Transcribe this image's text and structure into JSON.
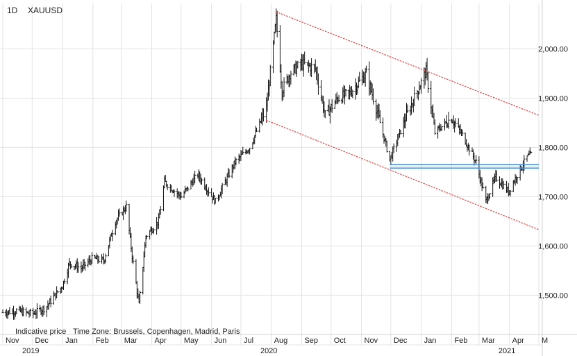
{
  "header": {
    "interval": "1D",
    "symbol": "XAUUSD"
  },
  "footer": {
    "note": "Indicative price",
    "timezone": "Time Zone: Brussels, Copenhagen, Madrid, Paris"
  },
  "colors": {
    "bars": "#111111",
    "grid": "#e3e3e3",
    "channel": "#e05050",
    "support": "#4a90d9",
    "text": "#222222"
  },
  "chart_data": {
    "type": "ohlc",
    "ylim": [
      1440,
      2085
    ],
    "y_ticks": [
      1500,
      1600,
      1700,
      1800,
      1900,
      2000
    ],
    "y_tick_labels": [
      "1,500.00",
      "1,600.00",
      "1,700.00",
      "1,800.00",
      "1,900.00",
      "2,000.00"
    ],
    "x_range": [
      "2019-11-01",
      "2021-05-01"
    ],
    "month_ticks": [
      {
        "date": "2019-11-01",
        "label": "Nov"
      },
      {
        "date": "2019-12-01",
        "label": "Dec"
      },
      {
        "date": "2020-01-01",
        "label": "Jan"
      },
      {
        "date": "2020-02-01",
        "label": "Feb"
      },
      {
        "date": "2020-03-01",
        "label": "Mar"
      },
      {
        "date": "2020-04-01",
        "label": "Apr"
      },
      {
        "date": "2020-05-01",
        "label": "May"
      },
      {
        "date": "2020-06-01",
        "label": "Jun"
      },
      {
        "date": "2020-07-01",
        "label": "Jul"
      },
      {
        "date": "2020-08-01",
        "label": "Aug"
      },
      {
        "date": "2020-09-01",
        "label": "Sep"
      },
      {
        "date": "2020-10-01",
        "label": "Oct"
      },
      {
        "date": "2020-11-01",
        "label": "Nov"
      },
      {
        "date": "2020-12-01",
        "label": "Dec"
      },
      {
        "date": "2021-01-01",
        "label": "Jan"
      },
      {
        "date": "2021-02-01",
        "label": "Feb"
      },
      {
        "date": "2021-03-01",
        "label": "Mar"
      },
      {
        "date": "2021-04-01",
        "label": "Apr"
      },
      {
        "date": "2021-05-01",
        "label": "M"
      }
    ],
    "year_labels": [
      {
        "date": "2019-11-01",
        "label": "2019"
      },
      {
        "date": "2020-07-01",
        "label": "2020"
      },
      {
        "date": "2021-03-01",
        "label": "2021"
      }
    ],
    "price_path": [
      [
        "2019-11-01",
        1465
      ],
      [
        "2019-11-15",
        1468
      ],
      [
        "2019-12-01",
        1462
      ],
      [
        "2019-12-15",
        1475
      ],
      [
        "2020-01-01",
        1520
      ],
      [
        "2020-01-08",
        1565
      ],
      [
        "2020-01-20",
        1555
      ],
      [
        "2020-02-01",
        1575
      ],
      [
        "2020-02-12",
        1570
      ],
      [
        "2020-02-24",
        1650
      ],
      [
        "2020-03-06",
        1680
      ],
      [
        "2020-03-12",
        1580
      ],
      [
        "2020-03-19",
        1480
      ],
      [
        "2020-03-26",
        1620
      ],
      [
        "2020-04-08",
        1650
      ],
      [
        "2020-04-14",
        1730
      ],
      [
        "2020-05-01",
        1700
      ],
      [
        "2020-05-18",
        1745
      ],
      [
        "2020-06-05",
        1690
      ],
      [
        "2020-06-25",
        1770
      ],
      [
        "2020-07-10",
        1800
      ],
      [
        "2020-07-27",
        1880
      ],
      [
        "2020-08-06",
        2060
      ],
      [
        "2020-08-12",
        1915
      ],
      [
        "2020-08-20",
        1950
      ],
      [
        "2020-09-01",
        1970
      ],
      [
        "2020-09-15",
        1960
      ],
      [
        "2020-09-25",
        1865
      ],
      [
        "2020-10-08",
        1900
      ],
      [
        "2020-10-20",
        1910
      ],
      [
        "2020-11-06",
        1950
      ],
      [
        "2020-11-16",
        1880
      ],
      [
        "2020-11-30",
        1775
      ],
      [
        "2020-12-15",
        1855
      ],
      [
        "2021-01-06",
        1955
      ],
      [
        "2021-01-15",
        1830
      ],
      [
        "2021-02-01",
        1860
      ],
      [
        "2021-02-12",
        1825
      ],
      [
        "2021-02-26",
        1770
      ],
      [
        "2021-03-08",
        1690
      ],
      [
        "2021-03-18",
        1740
      ],
      [
        "2021-03-31",
        1710
      ],
      [
        "2021-04-09",
        1745
      ],
      [
        "2021-04-19",
        1780
      ],
      [
        "2021-04-23",
        1785
      ]
    ],
    "channel_upper": [
      [
        "2020-08-06",
        2075
      ],
      [
        "2021-05-01",
        1865
      ]
    ],
    "channel_lower": [
      [
        "2020-07-27",
        1855
      ],
      [
        "2021-05-01",
        1633
      ]
    ],
    "support_band": {
      "from": "2020-11-30",
      "to": "2021-05-01",
      "levels": [
        1758,
        1765
      ]
    }
  }
}
